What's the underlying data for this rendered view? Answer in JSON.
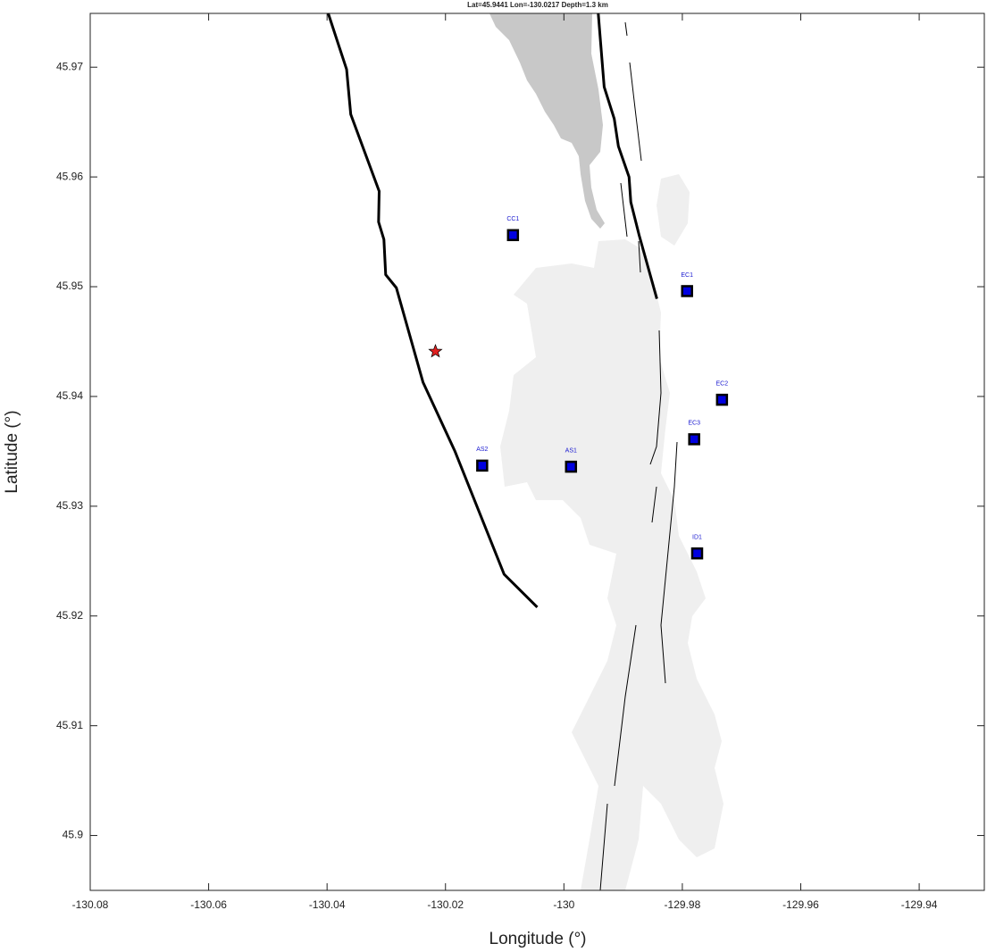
{
  "chart_data": {
    "type": "scatter",
    "title": "Lat=45.9441  Lon=-130.0217  Depth=1.3 km",
    "xlabel": "Longitude (°)",
    "ylabel": "Latitude (°)",
    "xlim": [
      -130.08,
      -129.929
    ],
    "ylim": [
      45.895,
      45.9749
    ],
    "xticks": [
      -130.08,
      -130.06,
      -130.04,
      -130.02,
      -130,
      -129.98,
      -129.96,
      -129.94
    ],
    "yticks": [
      45.9,
      45.91,
      45.92,
      45.93,
      45.94,
      45.95,
      45.96,
      45.97
    ],
    "stations": {
      "labels": [
        "CC1",
        "EC1",
        "EC2",
        "EC3",
        "AS2",
        "AS1",
        "ID1"
      ],
      "x": [
        -130.0086,
        -129.9792,
        -129.9733,
        -129.978,
        -130.0138,
        -129.9988,
        -129.9775
      ],
      "y": [
        45.9547,
        45.9496,
        45.9397,
        45.9361,
        45.9337,
        45.9336,
        45.9257
      ],
      "color": "#0000e0"
    },
    "event": {
      "x": -130.0217,
      "y": 45.9441,
      "color": "#e02020"
    },
    "tracks": [
      {
        "color": "#000000",
        "x": [
          -130.0398,
          -130.0367,
          -130.036,
          -130.0312,
          -130.0313,
          -130.0304,
          -130.0301,
          -130.0283,
          -130.0238,
          -130.0184,
          -130.0101,
          -130.0045
        ],
        "y": [
          45.9749,
          45.9698,
          45.9657,
          45.9587,
          45.9559,
          45.9543,
          45.9511,
          45.9499,
          45.9413,
          45.935,
          45.9238,
          45.9208
        ]
      },
      {
        "color": "#000000",
        "x": [
          -129.9942,
          -129.9932,
          -129.9915,
          -129.9908,
          -129.989,
          -129.9887,
          -129.9873,
          -129.9843
        ],
        "y": [
          45.9749,
          45.9682,
          45.9653,
          45.9628,
          45.96,
          45.9577,
          45.9547,
          45.9489
        ]
      }
    ]
  }
}
